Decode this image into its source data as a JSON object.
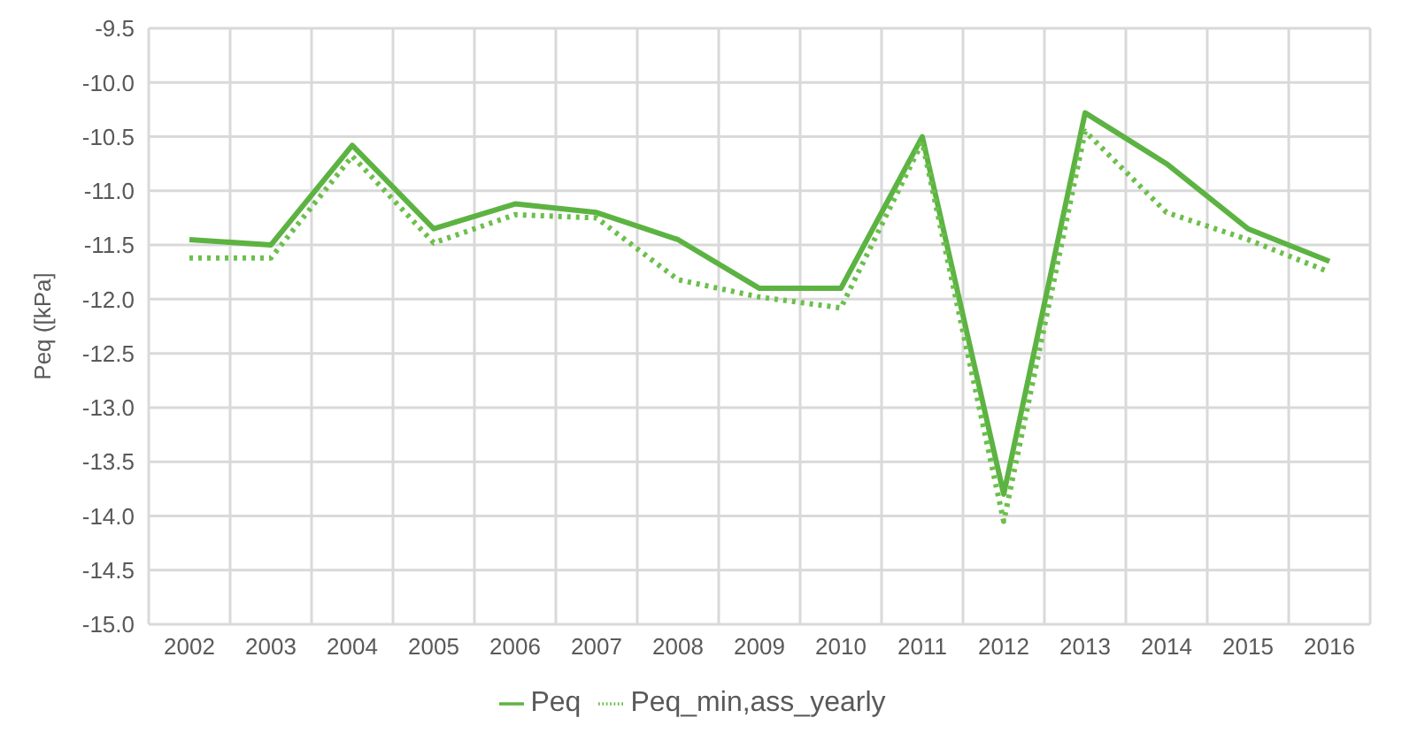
{
  "chart_data": {
    "type": "line",
    "ylabel": "Peq ([kPa]",
    "categories": [
      "2002",
      "2003",
      "2004",
      "2005",
      "2006",
      "2007",
      "2008",
      "2009",
      "2010",
      "2011",
      "2012",
      "2013",
      "2014",
      "2015",
      "2016"
    ],
    "series": [
      {
        "name": "Peq",
        "color": "#5cb342",
        "line_style": "solid",
        "values": [
          -11.45,
          -11.5,
          -10.58,
          -11.35,
          -11.12,
          -11.2,
          -11.45,
          -11.9,
          -11.9,
          -10.5,
          -13.8,
          -10.28,
          -10.75,
          -11.35,
          -11.65
        ]
      },
      {
        "name": "Peq_min,ass_yearly",
        "color": "#6cbf4c",
        "line_style": "dotted",
        "values": [
          -11.62,
          -11.62,
          -10.68,
          -11.48,
          -11.22,
          -11.25,
          -11.82,
          -11.98,
          -12.08,
          -10.55,
          -14.05,
          -10.45,
          -11.2,
          -11.45,
          -11.75
        ]
      }
    ],
    "ylim": [
      -15.0,
      -9.5
    ],
    "yticks": [
      {
        "value": -15,
        "label": "-15.0"
      },
      {
        "value": -14.5,
        "label": "-14.5"
      },
      {
        "value": -14,
        "label": "-14.0"
      },
      {
        "value": -13.5,
        "label": "-13.5"
      },
      {
        "value": -13,
        "label": "-13.0"
      },
      {
        "value": -12.5,
        "label": "-12.5"
      },
      {
        "value": -12,
        "label": "-12.0"
      },
      {
        "value": -11.5,
        "label": "-11.5"
      },
      {
        "value": -11,
        "label": "-11.0"
      },
      {
        "value": -10.5,
        "label": "-10.5"
      },
      {
        "value": -10,
        "label": "-10.0"
      },
      {
        "value": -9.5,
        "label": "-9.5"
      }
    ],
    "grid": true,
    "legend": "bottom",
    "marker": "none"
  }
}
